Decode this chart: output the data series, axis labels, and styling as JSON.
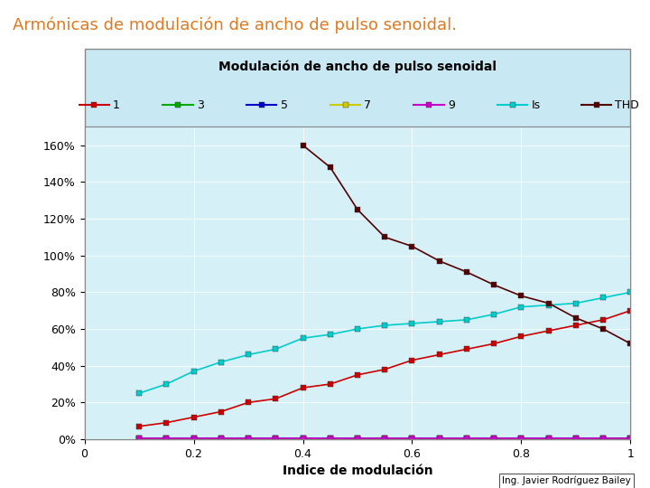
{
  "title": "Armónicas de modulación de ancho de pulso senoidal.",
  "chart_title": "Modulación de ancho de pulso senoidal",
  "xlabel": "Indice de modulación",
  "bg_color": "#d6f0f8",
  "outer_bg": "#c8e8f4",
  "title_color": "#e07820",
  "x": [
    0.1,
    0.15,
    0.2,
    0.25,
    0.3,
    0.35,
    0.4,
    0.45,
    0.5,
    0.55,
    0.6,
    0.65,
    0.7,
    0.75,
    0.8,
    0.85,
    0.9,
    0.95,
    1.0
  ],
  "series": [
    {
      "name": "1",
      "color": "#cc0000",
      "values": [
        0.07,
        0.09,
        0.12,
        0.15,
        0.2,
        0.22,
        0.28,
        0.3,
        0.35,
        0.38,
        0.43,
        0.46,
        0.49,
        0.52,
        0.56,
        0.59,
        0.62,
        0.65,
        0.7
      ]
    },
    {
      "name": "3",
      "color": "#00aa00",
      "values": [
        0.004,
        0.004,
        0.004,
        0.004,
        0.004,
        0.004,
        0.004,
        0.004,
        0.004,
        0.004,
        0.004,
        0.004,
        0.004,
        0.004,
        0.004,
        0.004,
        0.004,
        0.004,
        0.004
      ]
    },
    {
      "name": "5",
      "color": "#0000cc",
      "values": [
        0.003,
        0.003,
        0.003,
        0.003,
        0.003,
        0.003,
        0.003,
        0.003,
        0.003,
        0.003,
        0.003,
        0.003,
        0.003,
        0.003,
        0.003,
        0.003,
        0.003,
        0.003,
        0.003
      ]
    },
    {
      "name": "7",
      "color": "#cccc00",
      "values": [
        0.002,
        0.002,
        0.002,
        0.002,
        0.002,
        0.002,
        0.002,
        0.002,
        0.002,
        0.002,
        0.002,
        0.002,
        0.002,
        0.002,
        0.002,
        0.002,
        0.002,
        0.002,
        0.002
      ]
    },
    {
      "name": "9",
      "color": "#cc00cc",
      "values": [
        0.004,
        0.004,
        0.004,
        0.004,
        0.004,
        0.004,
        0.004,
        0.004,
        0.004,
        0.004,
        0.004,
        0.004,
        0.004,
        0.004,
        0.004,
        0.004,
        0.004,
        0.004,
        0.004
      ]
    },
    {
      "name": "Is",
      "color": "#00cccc",
      "values": [
        0.25,
        0.3,
        0.37,
        0.42,
        0.46,
        0.49,
        0.55,
        0.57,
        0.6,
        0.62,
        0.63,
        0.64,
        0.65,
        0.68,
        0.72,
        0.73,
        0.74,
        0.77,
        0.8
      ]
    },
    {
      "name": "THD",
      "color": "#550000",
      "values": [
        null,
        null,
        null,
        null,
        null,
        null,
        1.6,
        1.48,
        1.25,
        1.1,
        1.05,
        0.97,
        0.91,
        0.84,
        0.78,
        0.74,
        0.66,
        0.6,
        0.52
      ]
    }
  ],
  "ylim": [
    0.0,
    1.7
  ],
  "xlim": [
    0,
    1.0
  ],
  "yticks": [
    0.0,
    0.2,
    0.4,
    0.6,
    0.8,
    1.0,
    1.2,
    1.4,
    1.6
  ],
  "ytick_labels": [
    "0%",
    "20%",
    "40%",
    "60%",
    "80%",
    "100%",
    "120%",
    "140%",
    "160%"
  ],
  "xticks": [
    0,
    0.2,
    0.4,
    0.6,
    0.8,
    1.0
  ],
  "xtick_labels": [
    "0",
    "0.2",
    "0.4",
    "0.6",
    "0.8",
    "1"
  ]
}
